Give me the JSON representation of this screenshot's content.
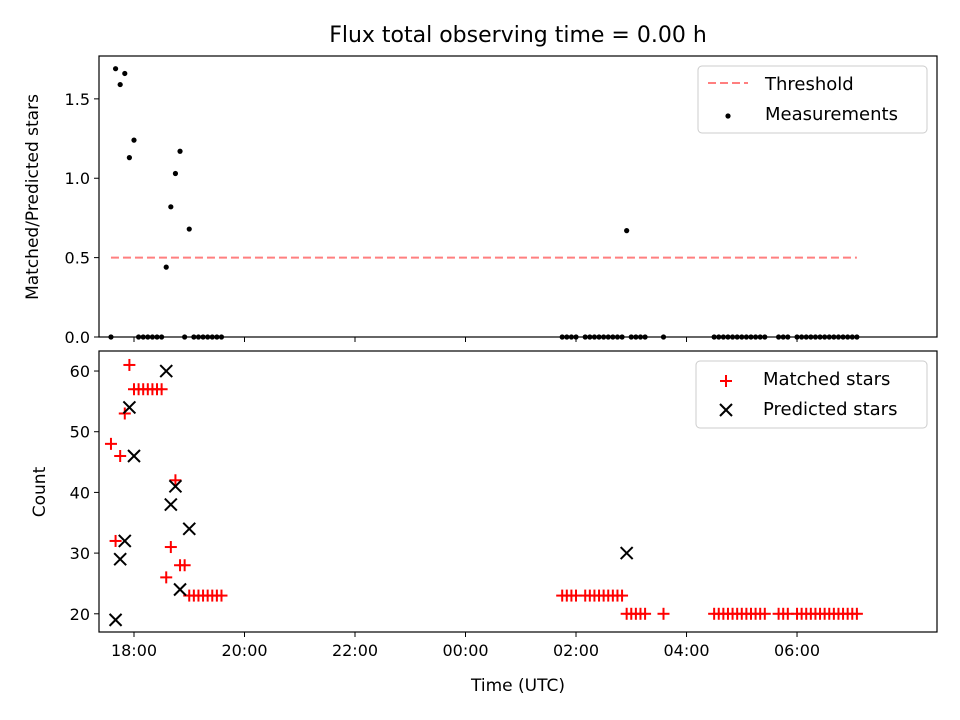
{
  "chart_data": [
    {
      "type": "scatter",
      "title": "Flux total observing time = 0.00 h",
      "ylabel": "Matched/Predicted stars",
      "xlabel": "",
      "ylim": [
        0,
        1.77
      ],
      "yticks": [
        0.0,
        0.5,
        1.0,
        1.5
      ],
      "ytick_labels": [
        "0.0",
        "0.5",
        "1.0",
        "1.5"
      ],
      "xlim": [
        "17:22",
        "08:32"
      ],
      "xticks": [
        "18:00",
        "20:00",
        "22:00",
        "00:00",
        "02:00",
        "04:00",
        "06:00"
      ],
      "threshold": {
        "name": "Threshold",
        "value": 0.5,
        "x_range": [
          "17:35",
          "07:05"
        ],
        "color": "#ff7f7f"
      },
      "legend": {
        "position": "upper-right",
        "entries": [
          "Threshold",
          "Measurements"
        ]
      },
      "series": [
        {
          "name": "Measurements",
          "color": "#000000",
          "x": [
            "17:35",
            "17:40",
            "17:45",
            "17:50",
            "17:55",
            "18:00",
            "18:05",
            "18:10",
            "18:15",
            "18:20",
            "18:25",
            "18:30",
            "18:35",
            "18:40",
            "18:45",
            "18:50",
            "18:55",
            "19:00",
            "19:05",
            "19:10",
            "19:15",
            "19:20",
            "19:25",
            "19:30",
            "19:35",
            "01:45",
            "01:50",
            "01:55",
            "02:00",
            "02:10",
            "02:15",
            "02:20",
            "02:25",
            "02:30",
            "02:35",
            "02:40",
            "02:45",
            "02:50",
            "02:55",
            "03:00",
            "03:05",
            "03:10",
            "03:15",
            "03:35",
            "04:30",
            "04:35",
            "04:40",
            "04:45",
            "04:50",
            "04:55",
            "05:00",
            "05:05",
            "05:10",
            "05:15",
            "05:20",
            "05:25",
            "05:40",
            "05:45",
            "05:50",
            "06:00",
            "06:05",
            "06:10",
            "06:15",
            "06:20",
            "06:25",
            "06:30",
            "06:35",
            "06:40",
            "06:45",
            "06:50",
            "06:55",
            "07:00",
            "07:05"
          ],
          "y": [
            0.0,
            1.69,
            1.59,
            1.66,
            1.13,
            1.24,
            0.0,
            0.0,
            0.0,
            0.0,
            0.0,
            0.0,
            0.44,
            0.82,
            1.03,
            1.17,
            0.0,
            0.68,
            0.0,
            0.0,
            0.0,
            0.0,
            0.0,
            0.0,
            0.0,
            0.0,
            0.0,
            0.0,
            0.0,
            0.0,
            0.0,
            0.0,
            0.0,
            0.0,
            0.0,
            0.0,
            0.0,
            0.0,
            0.67,
            0.0,
            0.0,
            0.0,
            0.0,
            0.0,
            0.0,
            0.0,
            0.0,
            0.0,
            0.0,
            0.0,
            0.0,
            0.0,
            0.0,
            0.0,
            0.0,
            0.0,
            0.0,
            0.0,
            0.0,
            0.0,
            0.0,
            0.0,
            0.0,
            0.0,
            0.0,
            0.0,
            0.0,
            0.0,
            0.0,
            0.0,
            0.0,
            0.0,
            0.0
          ]
        }
      ]
    },
    {
      "type": "scatter",
      "title": "",
      "ylabel": "Count",
      "xlabel": "Time (UTC)",
      "ylim": [
        17,
        63.3
      ],
      "yticks": [
        20,
        30,
        40,
        50,
        60
      ],
      "xlim": [
        "17:22",
        "08:32"
      ],
      "xticks": [
        "18:00",
        "20:00",
        "22:00",
        "00:00",
        "02:00",
        "04:00",
        "06:00"
      ],
      "xtick_labels": [
        "18:00",
        "20:00",
        "22:00",
        "00:00",
        "02:00",
        "04:00",
        "06:00"
      ],
      "legend": {
        "position": "upper-right",
        "entries": [
          "Matched stars",
          "Predicted stars"
        ]
      },
      "series": [
        {
          "name": "Matched stars",
          "marker": "plus",
          "color": "#ff0000",
          "x": [
            "17:35",
            "17:40",
            "17:45",
            "17:50",
            "17:55",
            "18:00",
            "18:05",
            "18:10",
            "18:15",
            "18:20",
            "18:25",
            "18:30",
            "18:35",
            "18:40",
            "18:45",
            "18:50",
            "18:55",
            "19:00",
            "19:05",
            "19:10",
            "19:15",
            "19:20",
            "19:25",
            "19:30",
            "19:35",
            "01:45",
            "01:50",
            "01:55",
            "02:00",
            "02:10",
            "02:15",
            "02:20",
            "02:25",
            "02:30",
            "02:35",
            "02:40",
            "02:45",
            "02:50",
            "02:55",
            "03:00",
            "03:05",
            "03:10",
            "03:15",
            "03:35",
            "04:30",
            "04:35",
            "04:40",
            "04:45",
            "04:50",
            "04:55",
            "05:00",
            "05:05",
            "05:10",
            "05:15",
            "05:20",
            "05:25",
            "05:40",
            "05:45",
            "05:50",
            "06:00",
            "06:05",
            "06:10",
            "06:15",
            "06:20",
            "06:25",
            "06:30",
            "06:35",
            "06:40",
            "06:45",
            "06:50",
            "06:55",
            "07:00",
            "07:05"
          ],
          "y": [
            48,
            32,
            46,
            53,
            61,
            57,
            57,
            57,
            57,
            57,
            57,
            57,
            26,
            31,
            42,
            28,
            28,
            23,
            23,
            23,
            23,
            23,
            23,
            23,
            23,
            23,
            23,
            23,
            23,
            23,
            23,
            23,
            23,
            23,
            23,
            23,
            23,
            23,
            20,
            20,
            20,
            20,
            20,
            20,
            20,
            20,
            20,
            20,
            20,
            20,
            20,
            20,
            20,
            20,
            20,
            20,
            20,
            20,
            20,
            20,
            20,
            20,
            20,
            20,
            20,
            20,
            20,
            20,
            20,
            20,
            20,
            20,
            20
          ]
        },
        {
          "name": "Predicted stars",
          "marker": "x",
          "color": "#000000",
          "x": [
            "17:40",
            "17:45",
            "17:50",
            "17:55",
            "18:00",
            "18:35",
            "18:40",
            "18:45",
            "18:50",
            "19:00",
            "02:55"
          ],
          "y": [
            19,
            29,
            32,
            54,
            46,
            60,
            38,
            41,
            24,
            34,
            30
          ]
        }
      ]
    }
  ]
}
